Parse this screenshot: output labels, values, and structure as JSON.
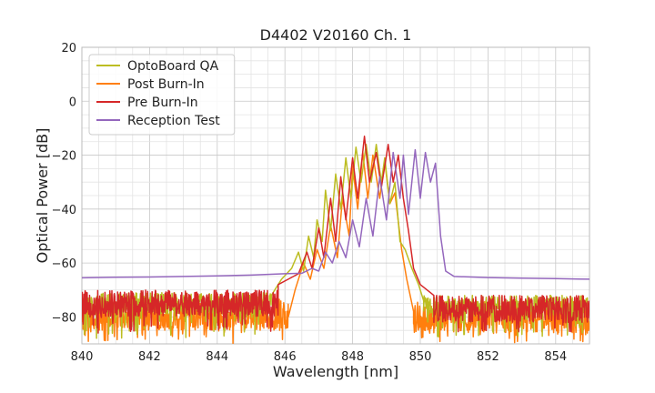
{
  "chart_data": {
    "type": "line",
    "title": "D4402 V20160 Ch. 1",
    "xlabel": "Wavelength [nm]",
    "ylabel": "Optical Power [dB]",
    "xlim": [
      840,
      855
    ],
    "ylim": [
      -90,
      20
    ],
    "xticks": [
      840,
      842,
      844,
      846,
      848,
      850,
      852,
      854
    ],
    "yticks": [
      20,
      0,
      -20,
      -40,
      -60,
      -80
    ],
    "ytick_labels": [
      "20",
      "0",
      "−20",
      "−40",
      "−60",
      "−80"
    ],
    "grid": true,
    "legend_position": "top-left",
    "series": [
      {
        "name": "OptoBoard QA",
        "color": "#bcbd22",
        "noise_floor": {
          "from": 840,
          "to": 845.6,
          "level": -75,
          "spread": 4,
          "dips_to": -88
        },
        "noise_floor_right": {
          "from": 850.1,
          "to": 855,
          "level": -76,
          "spread": 4,
          "dips_to": -88
        },
        "points": [
          [
            845.6,
            -72
          ],
          [
            845.9,
            -66
          ],
          [
            846.2,
            -62
          ],
          [
            846.4,
            -56
          ],
          [
            846.55,
            -63
          ],
          [
            846.7,
            -50
          ],
          [
            846.85,
            -58
          ],
          [
            846.95,
            -44
          ],
          [
            847.1,
            -52
          ],
          [
            847.2,
            -33
          ],
          [
            847.35,
            -48
          ],
          [
            847.5,
            -27
          ],
          [
            847.65,
            -40
          ],
          [
            847.8,
            -21
          ],
          [
            847.95,
            -36
          ],
          [
            848.1,
            -17
          ],
          [
            848.25,
            -30
          ],
          [
            848.4,
            -16
          ],
          [
            848.55,
            -30
          ],
          [
            848.7,
            -16
          ],
          [
            848.85,
            -30
          ],
          [
            848.95,
            -21
          ],
          [
            849.1,
            -38
          ],
          [
            849.25,
            -30
          ],
          [
            849.4,
            -52
          ],
          [
            849.55,
            -55
          ],
          [
            849.75,
            -62
          ],
          [
            849.95,
            -68
          ],
          [
            850.1,
            -74
          ]
        ]
      },
      {
        "name": "Post Burn-In",
        "color": "#ff7f0e",
        "noise_floor": {
          "from": 840,
          "to": 846.1,
          "level": -79,
          "spread": 6,
          "dips_to": -90
        },
        "noise_floor_right": {
          "from": 849.8,
          "to": 855,
          "level": -80,
          "spread": 6,
          "dips_to": -90
        },
        "points": [
          [
            846.1,
            -80
          ],
          [
            846.3,
            -70
          ],
          [
            846.55,
            -60
          ],
          [
            846.75,
            -66
          ],
          [
            846.95,
            -55
          ],
          [
            847.15,
            -62
          ],
          [
            847.35,
            -46
          ],
          [
            847.55,
            -58
          ],
          [
            847.7,
            -36
          ],
          [
            847.9,
            -50
          ],
          [
            848.0,
            -24
          ],
          [
            848.15,
            -40
          ],
          [
            848.3,
            -19
          ],
          [
            848.45,
            -36
          ],
          [
            848.6,
            -20
          ],
          [
            848.8,
            -36
          ],
          [
            848.95,
            -22
          ],
          [
            849.1,
            -38
          ],
          [
            849.25,
            -34
          ],
          [
            849.45,
            -55
          ],
          [
            849.6,
            -66
          ],
          [
            849.8,
            -78
          ]
        ]
      },
      {
        "name": "Pre Burn-In",
        "color": "#d62728",
        "noise_floor": {
          "from": 840,
          "to": 845.8,
          "level": -75,
          "spread": 5,
          "dips_to": -86
        },
        "noise_floor_right": {
          "from": 850.4,
          "to": 855,
          "level": -77,
          "spread": 5,
          "dips_to": -86
        },
        "points": [
          [
            845.8,
            -68
          ],
          [
            846.1,
            -66
          ],
          [
            846.4,
            -64
          ],
          [
            846.65,
            -56
          ],
          [
            846.8,
            -62
          ],
          [
            847.0,
            -47
          ],
          [
            847.15,
            -58
          ],
          [
            847.35,
            -36
          ],
          [
            847.5,
            -52
          ],
          [
            847.65,
            -28
          ],
          [
            847.8,
            -44
          ],
          [
            848.0,
            -21
          ],
          [
            848.15,
            -36
          ],
          [
            848.35,
            -13
          ],
          [
            848.5,
            -30
          ],
          [
            848.7,
            -19
          ],
          [
            848.85,
            -32
          ],
          [
            849.05,
            -16
          ],
          [
            849.2,
            -30
          ],
          [
            849.35,
            -20
          ],
          [
            849.5,
            -36
          ],
          [
            849.65,
            -48
          ],
          [
            849.8,
            -62
          ],
          [
            850.0,
            -68
          ],
          [
            850.2,
            -70
          ],
          [
            850.4,
            -72
          ]
        ]
      },
      {
        "name": "Reception Test",
        "color": "#9467bd",
        "points": [
          [
            840,
            -65.5
          ],
          [
            841,
            -65.3
          ],
          [
            842,
            -65.2
          ],
          [
            843,
            -65.0
          ],
          [
            844,
            -64.8
          ],
          [
            845,
            -64.5
          ],
          [
            846,
            -64.0
          ],
          [
            846.5,
            -63.8
          ],
          [
            846.8,
            -62
          ],
          [
            847.0,
            -63
          ],
          [
            847.2,
            -56
          ],
          [
            847.4,
            -60
          ],
          [
            847.6,
            -52
          ],
          [
            847.8,
            -58
          ],
          [
            848.0,
            -44
          ],
          [
            848.2,
            -54
          ],
          [
            848.4,
            -36
          ],
          [
            848.6,
            -50
          ],
          [
            848.8,
            -28
          ],
          [
            849.0,
            -44
          ],
          [
            849.2,
            -19
          ],
          [
            849.4,
            -36
          ],
          [
            849.5,
            -20
          ],
          [
            849.65,
            -42
          ],
          [
            849.85,
            -18
          ],
          [
            850.0,
            -36
          ],
          [
            850.15,
            -19
          ],
          [
            850.3,
            -30
          ],
          [
            850.45,
            -23
          ],
          [
            850.6,
            -50
          ],
          [
            850.75,
            -63
          ],
          [
            851.0,
            -65
          ],
          [
            852.0,
            -65.4
          ],
          [
            853.0,
            -65.6
          ],
          [
            854.0,
            -65.8
          ],
          [
            855.0,
            -66
          ]
        ]
      }
    ]
  }
}
